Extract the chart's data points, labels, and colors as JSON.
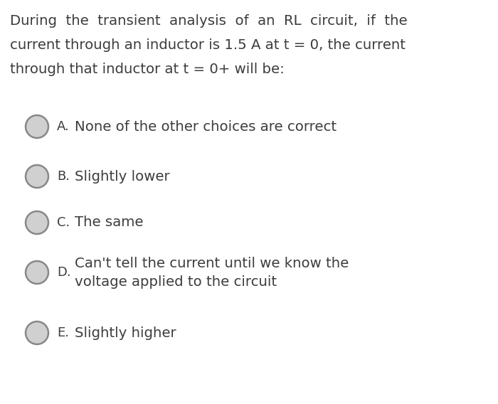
{
  "background_color": "#ffffff",
  "question_lines": [
    "During  the  transient  analysis  of  an  RL  circuit,  if  the",
    "current through an inductor is 1.5 A at t = 0, the current",
    "through that inductor at t = 0+ will be:"
  ],
  "options": [
    {
      "label": "A.",
      "text": "None of the other choices are correct",
      "multiline": false
    },
    {
      "label": "B.",
      "text": "Slightly lower",
      "multiline": false
    },
    {
      "label": "C.",
      "text": "The same",
      "multiline": false
    },
    {
      "label": "D.",
      "text1": "Can't tell the current until we know the",
      "text2": "voltage applied to the circuit",
      "multiline": true
    },
    {
      "label": "E.",
      "text": "Slightly higher",
      "multiline": false
    }
  ],
  "text_color": "#3d3d3d",
  "circle_edge_color": "#888888",
  "circle_fill_color": "#d0d0d0",
  "question_fontsize": 14.2,
  "option_fontsize": 14.2,
  "label_fontsize": 13.0
}
